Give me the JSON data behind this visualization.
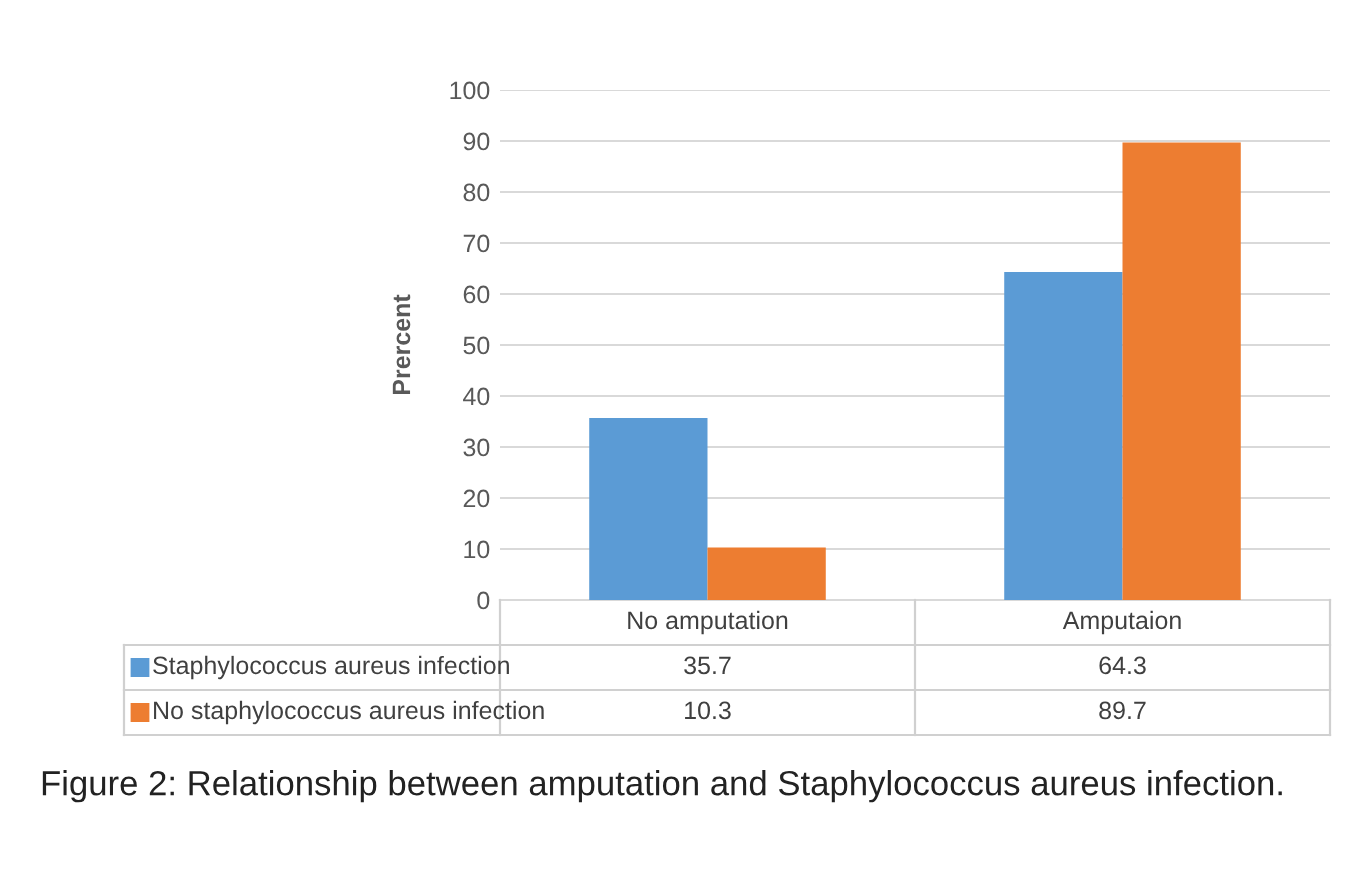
{
  "chart_data": {
    "type": "bar",
    "ylabel": "Prercent",
    "categories": [
      "No amputation",
      "Amputaion"
    ],
    "series": [
      {
        "name": "Staphylococcus aureus infection",
        "color": "#5b9bd5",
        "values": [
          35.7,
          64.3
        ]
      },
      {
        "name": "No staphylococcus aureus infection",
        "color": "#ed7d31",
        "values": [
          10.3,
          89.7
        ]
      }
    ],
    "ylim": [
      0,
      100
    ],
    "yticks": [
      0,
      10,
      20,
      30,
      40,
      50,
      60,
      70,
      80,
      90,
      100
    ],
    "grid": "y",
    "data_labels": true,
    "legend": "bottom",
    "annotations": [
      "Figure 2: Relationship between amputation and Staphylococcus aureus infection."
    ]
  }
}
